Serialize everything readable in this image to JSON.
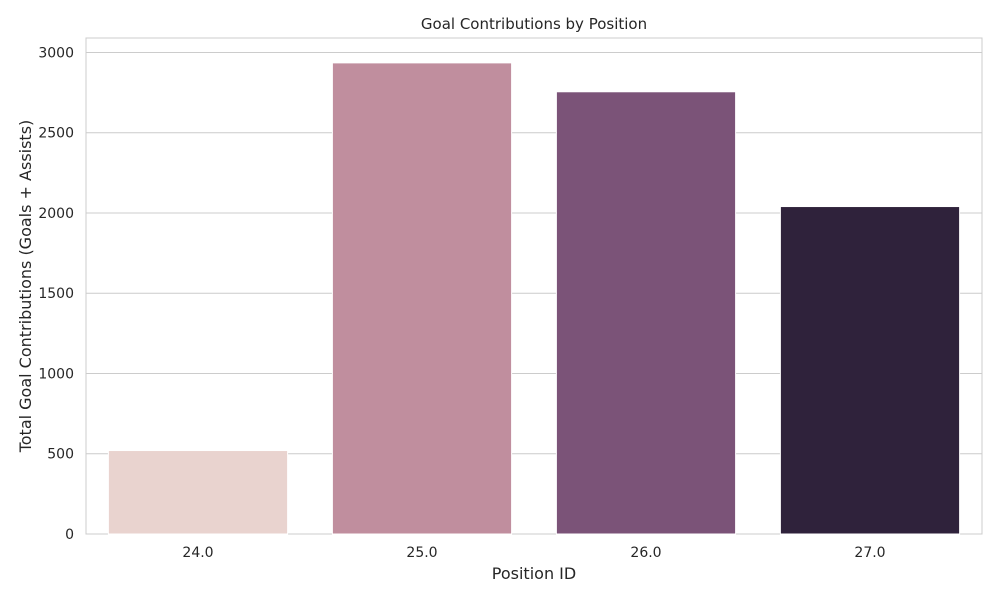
{
  "chart_data": {
    "type": "bar",
    "title": "Goal Contributions by Position",
    "xlabel": "Position ID",
    "ylabel": "Total Goal Contributions (Goals + Assists)",
    "categories": [
      "24.0",
      "25.0",
      "26.0",
      "27.0"
    ],
    "values": [
      520,
      2935,
      2755,
      2040
    ],
    "colors": [
      "#e9d3cf",
      "#c08e9e",
      "#7b5378",
      "#2f223b"
    ],
    "ylim": [
      0,
      3090
    ],
    "yticks": [
      0,
      500,
      1000,
      1500,
      2000,
      2500,
      3000
    ],
    "grid": true,
    "legend": "none"
  }
}
